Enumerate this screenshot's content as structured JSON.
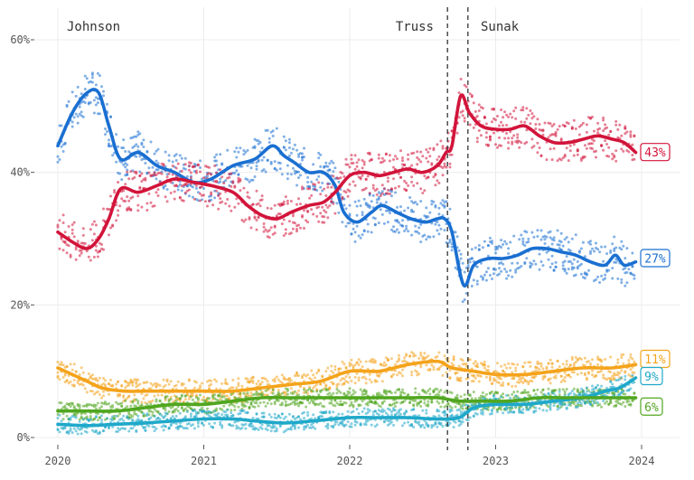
{
  "chart_data": {
    "type": "line",
    "title": "",
    "xlabel": "",
    "ylabel": "",
    "xlim": [
      2020.0,
      2024.25
    ],
    "ylim": [
      0,
      62
    ],
    "x_ticks": [
      {
        "value": 2020,
        "label": "2020"
      },
      {
        "value": 2021,
        "label": "2021"
      },
      {
        "value": 2022,
        "label": "2022"
      },
      {
        "value": 2023,
        "label": "2023"
      },
      {
        "value": 2024,
        "label": "2024"
      }
    ],
    "y_ticks": [
      {
        "value": 0,
        "label": "0%"
      },
      {
        "value": 20,
        "label": "20%"
      },
      {
        "value": 40,
        "label": "40%"
      },
      {
        "value": 60,
        "label": "60%"
      }
    ],
    "grid": true,
    "eras": [
      {
        "name": "Johnson",
        "start": 2020.0
      },
      {
        "name": "Truss",
        "start": 2022.67
      },
      {
        "name": "Sunak",
        "start": 2022.81
      }
    ],
    "dividers": [
      2022.67,
      2022.81
    ],
    "series": [
      {
        "key": "con",
        "color": "#1a6fd1",
        "end_label": "27%",
        "trend": [
          [
            2020.0,
            44
          ],
          [
            2020.1,
            49
          ],
          [
            2020.2,
            52
          ],
          [
            2020.28,
            52
          ],
          [
            2020.35,
            47
          ],
          [
            2020.43,
            42
          ],
          [
            2020.55,
            43
          ],
          [
            2020.68,
            41
          ],
          [
            2020.8,
            40
          ],
          [
            2020.93,
            38.5
          ],
          [
            2021.05,
            39
          ],
          [
            2021.2,
            41
          ],
          [
            2021.35,
            42
          ],
          [
            2021.47,
            44
          ],
          [
            2021.55,
            42.5
          ],
          [
            2021.62,
            41.5
          ],
          [
            2021.72,
            40
          ],
          [
            2021.82,
            40
          ],
          [
            2021.9,
            38
          ],
          [
            2021.96,
            34
          ],
          [
            2022.05,
            32.5
          ],
          [
            2022.15,
            34
          ],
          [
            2022.22,
            35
          ],
          [
            2022.32,
            34
          ],
          [
            2022.42,
            33
          ],
          [
            2022.52,
            32.5
          ],
          [
            2022.6,
            33
          ],
          [
            2022.65,
            33
          ],
          [
            2022.7,
            31
          ],
          [
            2022.78,
            23
          ],
          [
            2022.85,
            26
          ],
          [
            2022.95,
            27
          ],
          [
            2023.05,
            27
          ],
          [
            2023.15,
            27.5
          ],
          [
            2023.25,
            28.5
          ],
          [
            2023.35,
            28.5
          ],
          [
            2023.45,
            28
          ],
          [
            2023.55,
            27.5
          ],
          [
            2023.65,
            26.5
          ],
          [
            2023.75,
            26
          ],
          [
            2023.82,
            27.5
          ],
          [
            2023.88,
            26
          ],
          [
            2023.96,
            26.5
          ]
        ]
      },
      {
        "key": "lab",
        "color": "#d2143a",
        "end_label": "43%",
        "trend": [
          [
            2020.0,
            31
          ],
          [
            2020.1,
            29.5
          ],
          [
            2020.2,
            28.5
          ],
          [
            2020.28,
            30
          ],
          [
            2020.35,
            33
          ],
          [
            2020.43,
            37.5
          ],
          [
            2020.55,
            37
          ],
          [
            2020.68,
            38
          ],
          [
            2020.8,
            39
          ],
          [
            2020.93,
            38.5
          ],
          [
            2021.05,
            38
          ],
          [
            2021.2,
            37
          ],
          [
            2021.3,
            35
          ],
          [
            2021.4,
            33.5
          ],
          [
            2021.5,
            33
          ],
          [
            2021.6,
            34
          ],
          [
            2021.72,
            35
          ],
          [
            2021.82,
            35.5
          ],
          [
            2021.9,
            37
          ],
          [
            2022.0,
            39.5
          ],
          [
            2022.1,
            40
          ],
          [
            2022.2,
            39.5
          ],
          [
            2022.3,
            40
          ],
          [
            2022.4,
            40.5
          ],
          [
            2022.5,
            40
          ],
          [
            2022.6,
            41
          ],
          [
            2022.66,
            43
          ],
          [
            2022.7,
            44
          ],
          [
            2022.76,
            51.5
          ],
          [
            2022.82,
            49
          ],
          [
            2022.9,
            47
          ],
          [
            2023.0,
            46.5
          ],
          [
            2023.1,
            46.5
          ],
          [
            2023.2,
            47
          ],
          [
            2023.3,
            45.5
          ],
          [
            2023.4,
            44.5
          ],
          [
            2023.5,
            44.5
          ],
          [
            2023.6,
            45
          ],
          [
            2023.7,
            45.5
          ],
          [
            2023.8,
            45
          ],
          [
            2023.88,
            44.5
          ],
          [
            2023.96,
            43
          ]
        ]
      },
      {
        "key": "ld",
        "color": "#f4a31b",
        "end_label": "11%",
        "trend": [
          [
            2020.0,
            10.5
          ],
          [
            2020.1,
            9.5
          ],
          [
            2020.2,
            8.5
          ],
          [
            2020.3,
            7.5
          ],
          [
            2020.45,
            7
          ],
          [
            2020.6,
            7
          ],
          [
            2020.8,
            7
          ],
          [
            2021.0,
            7
          ],
          [
            2021.2,
            7
          ],
          [
            2021.4,
            7.5
          ],
          [
            2021.6,
            8
          ],
          [
            2021.8,
            8.5
          ],
          [
            2022.0,
            10
          ],
          [
            2022.2,
            10
          ],
          [
            2022.4,
            11
          ],
          [
            2022.6,
            11.5
          ],
          [
            2022.7,
            10.5
          ],
          [
            2022.85,
            10
          ],
          [
            2023.0,
            9.5
          ],
          [
            2023.2,
            9.5
          ],
          [
            2023.4,
            10
          ],
          [
            2023.6,
            10.5
          ],
          [
            2023.8,
            10.5
          ],
          [
            2023.96,
            11
          ]
        ]
      },
      {
        "key": "green",
        "color": "#50a61f",
        "end_label": "6%",
        "trend": [
          [
            2020.0,
            4
          ],
          [
            2020.2,
            4
          ],
          [
            2020.4,
            4
          ],
          [
            2020.6,
            4.5
          ],
          [
            2020.8,
            5
          ],
          [
            2021.0,
            5
          ],
          [
            2021.2,
            5.5
          ],
          [
            2021.4,
            6
          ],
          [
            2021.6,
            6
          ],
          [
            2021.8,
            6
          ],
          [
            2022.0,
            6
          ],
          [
            2022.2,
            6
          ],
          [
            2022.4,
            6
          ],
          [
            2022.6,
            6
          ],
          [
            2022.75,
            5.5
          ],
          [
            2022.9,
            5.5
          ],
          [
            2023.1,
            5.5
          ],
          [
            2023.3,
            6
          ],
          [
            2023.5,
            6
          ],
          [
            2023.7,
            6
          ],
          [
            2023.96,
            6
          ]
        ]
      },
      {
        "key": "reform",
        "color": "#1fa8c9",
        "end_label": "9%",
        "trend": [
          [
            2020.0,
            2
          ],
          [
            2020.2,
            1.8
          ],
          [
            2020.4,
            2
          ],
          [
            2020.6,
            2.2
          ],
          [
            2020.8,
            2.5
          ],
          [
            2021.0,
            2.8
          ],
          [
            2021.2,
            2.8
          ],
          [
            2021.35,
            2.5
          ],
          [
            2021.55,
            2.2
          ],
          [
            2021.75,
            2.5
          ],
          [
            2022.0,
            3
          ],
          [
            2022.2,
            3
          ],
          [
            2022.4,
            3
          ],
          [
            2022.6,
            2.8
          ],
          [
            2022.75,
            3
          ],
          [
            2022.85,
            4.5
          ],
          [
            2023.0,
            5
          ],
          [
            2023.2,
            5
          ],
          [
            2023.4,
            5.5
          ],
          [
            2023.6,
            6
          ],
          [
            2023.75,
            7
          ],
          [
            2023.85,
            7.5
          ],
          [
            2023.96,
            9
          ]
        ]
      }
    ]
  }
}
